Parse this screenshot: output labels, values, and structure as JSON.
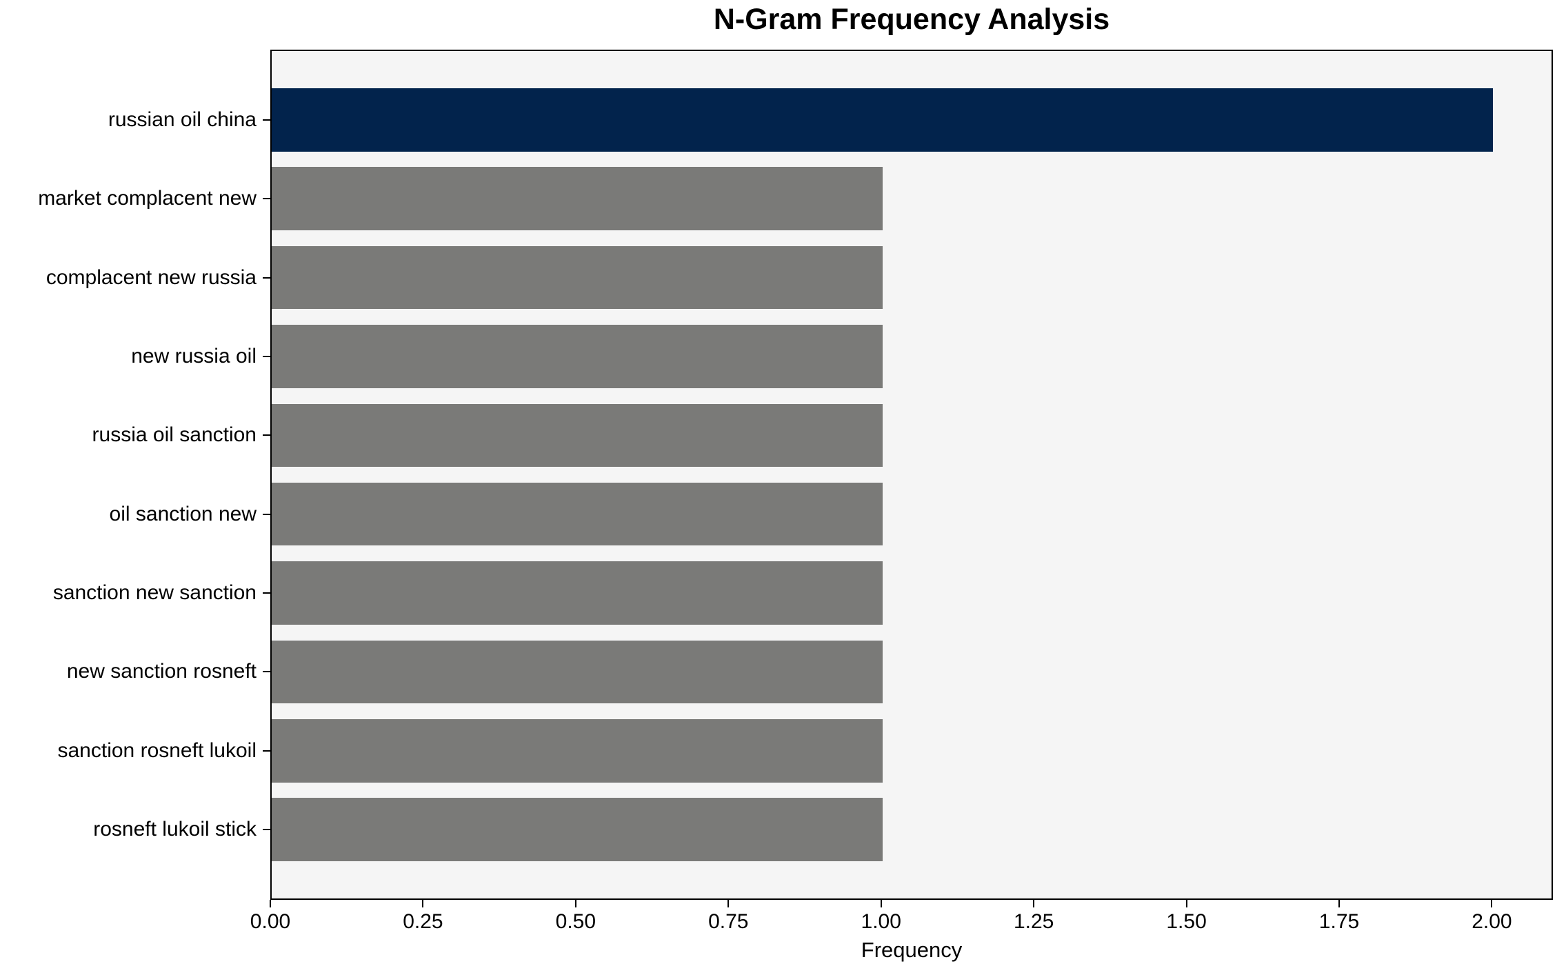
{
  "chart_data": {
    "type": "bar",
    "orientation": "horizontal",
    "title": "N-Gram Frequency Analysis",
    "xlabel": "Frequency",
    "ylabel": "",
    "categories": [
      "russian oil china",
      "market complacent new",
      "complacent new russia",
      "new russia oil",
      "russia oil sanction",
      "oil sanction new",
      "sanction new sanction",
      "new sanction rosneft",
      "sanction rosneft lukoil",
      "rosneft lukoil stick"
    ],
    "values": [
      2,
      1,
      1,
      1,
      1,
      1,
      1,
      1,
      1,
      1
    ],
    "bar_colors": [
      "#02234c",
      "#7a7a78",
      "#7a7a78",
      "#7a7a78",
      "#7a7a78",
      "#7a7a78",
      "#7a7a78",
      "#7a7a78",
      "#7a7a78",
      "#7a7a78"
    ],
    "xlim": [
      0,
      2.1
    ],
    "xticks": [
      0,
      0.25,
      0.5,
      0.75,
      1,
      1.25,
      1.5,
      1.75,
      2
    ],
    "xtick_labels": [
      "0.00",
      "0.25",
      "0.50",
      "0.75",
      "1.00",
      "1.25",
      "1.50",
      "1.75",
      "2.00"
    ],
    "grid": false,
    "legend_position": "none",
    "colors": {
      "highlight_bar": "#02234c",
      "default_bar": "#7a7a78",
      "plot_background": "#f5f5f5",
      "figure_background": "#ffffff",
      "axis": "#000000",
      "text": "#000000"
    }
  }
}
